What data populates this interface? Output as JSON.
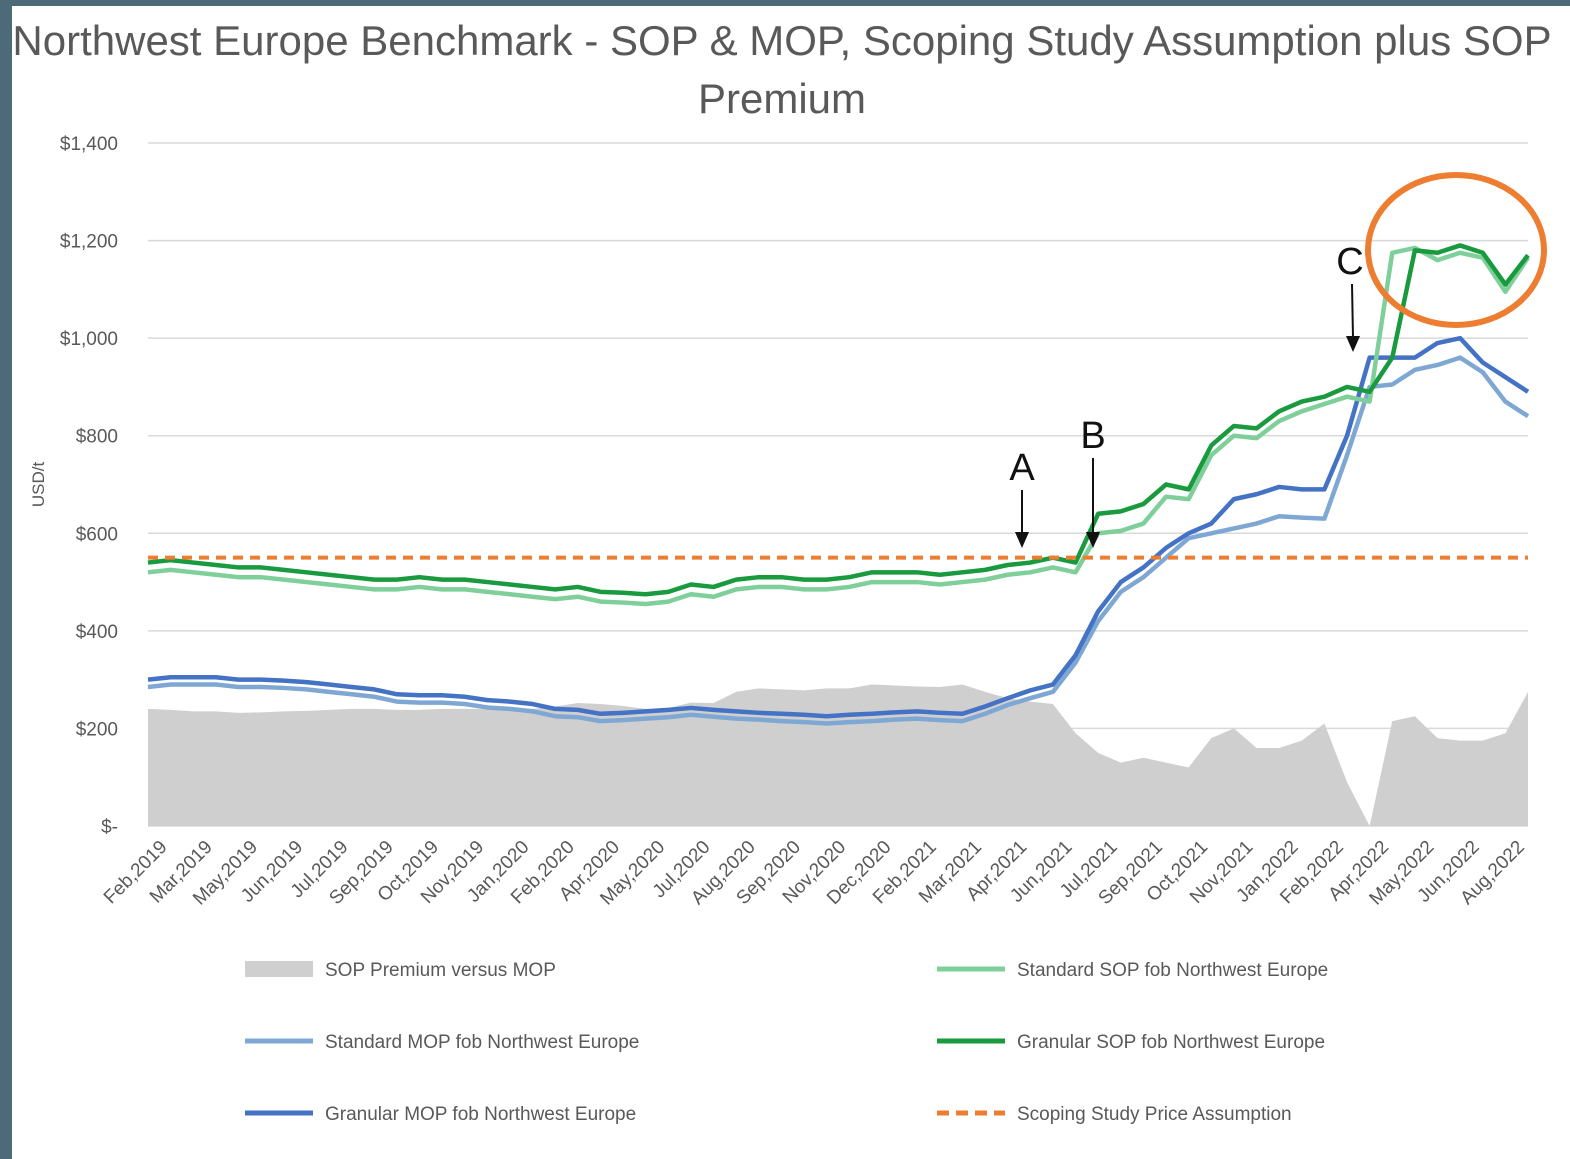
{
  "chart_data": {
    "type": "line",
    "title": "Northwest Europe Benchmark - SOP & MOP, Scoping Study Assumption plus SOP Premium",
    "y_label": "USD/t",
    "categories": [
      "Feb,2019",
      null,
      "Mar,2019",
      null,
      "May,2019",
      null,
      "Jun,2019",
      null,
      "Jul,2019",
      null,
      "Sep,2019",
      null,
      "Oct,2019",
      null,
      "Nov,2019",
      null,
      "Jan,2020",
      null,
      "Feb,2020",
      null,
      "Apr,2020",
      null,
      "May,2020",
      null,
      "Jul,2020",
      null,
      "Aug,2020",
      null,
      "Sep,2020",
      null,
      "Nov,2020",
      null,
      "Dec,2020",
      null,
      "Feb,2021",
      null,
      "Mar,2021",
      null,
      "Apr,2021",
      null,
      "Jun,2021",
      null,
      "Jul,2021",
      null,
      "Sep,2021",
      null,
      "Oct,2021",
      null,
      "Nov,2021",
      null,
      "Jan,2022",
      null,
      "Feb,2022",
      null,
      "Apr,2022",
      null,
      "May,2022",
      null,
      "Jun,2022",
      null,
      "Aug,2022",
      null
    ],
    "ylim": [
      0,
      1400
    ],
    "yticks": [
      {
        "value": 0,
        "label": "$-"
      },
      {
        "value": 200,
        "label": "$200"
      },
      {
        "value": 400,
        "label": "$400"
      },
      {
        "value": 600,
        "label": "$600"
      },
      {
        "value": 800,
        "label": "$800"
      },
      {
        "value": 1000,
        "label": "$1,000"
      },
      {
        "value": 1200,
        "label": "$1,200"
      },
      {
        "value": 1400,
        "label": "$1,400"
      }
    ],
    "grid": true,
    "series": [
      {
        "name": "SOP Premium versus MOP",
        "kind": "area",
        "color": "#d0cfcf",
        "values": [
          240,
          238,
          235,
          235,
          232,
          233,
          235,
          236,
          238,
          240,
          240,
          238,
          238,
          240,
          240,
          240,
          240,
          240,
          245,
          252,
          250,
          246,
          240,
          242,
          253,
          252,
          275,
          282,
          280,
          278,
          282,
          282,
          290,
          288,
          286,
          285,
          290,
          275,
          262,
          255,
          250,
          190,
          150,
          130,
          140,
          130,
          120,
          180,
          200,
          160,
          160,
          175,
          210,
          90,
          0,
          215,
          225,
          180,
          175,
          175,
          190,
          275
        ]
      },
      {
        "name": "Standard SOP fob Northwest Europe",
        "kind": "line",
        "color": "#7fcf9a",
        "values": [
          520,
          525,
          520,
          515,
          510,
          510,
          505,
          500,
          495,
          490,
          485,
          485,
          490,
          485,
          485,
          480,
          475,
          470,
          465,
          470,
          460,
          458,
          455,
          460,
          475,
          470,
          485,
          490,
          490,
          485,
          485,
          490,
          500,
          500,
          500,
          495,
          500,
          505,
          515,
          520,
          530,
          520,
          600,
          605,
          620,
          675,
          670,
          760,
          800,
          795,
          830,
          850,
          865,
          880,
          870,
          1175,
          1185,
          1160,
          1175,
          1165,
          1095,
          1165
        ]
      },
      {
        "name": "Standard MOP fob Northwest Europe",
        "kind": "line",
        "color": "#7fa7d4",
        "values": [
          285,
          290,
          290,
          290,
          285,
          285,
          283,
          280,
          275,
          270,
          265,
          255,
          253,
          253,
          250,
          243,
          240,
          235,
          225,
          223,
          215,
          217,
          220,
          223,
          228,
          224,
          220,
          218,
          215,
          213,
          210,
          213,
          215,
          218,
          220,
          217,
          215,
          230,
          248,
          262,
          275,
          335,
          420,
          480,
          510,
          550,
          590,
          600,
          610,
          620,
          635,
          632,
          630,
          760,
          900,
          905,
          935,
          945,
          960,
          930,
          870,
          840
        ]
      },
      {
        "name": "Granular SOP fob Northwest Europe",
        "kind": "line",
        "color": "#1a9a3e",
        "values": [
          540,
          545,
          540,
          535,
          530,
          530,
          525,
          520,
          515,
          510,
          505,
          505,
          510,
          505,
          505,
          500,
          495,
          490,
          485,
          490,
          480,
          478,
          475,
          480,
          495,
          490,
          505,
          510,
          510,
          505,
          505,
          510,
          520,
          520,
          520,
          515,
          520,
          525,
          535,
          540,
          550,
          540,
          640,
          645,
          660,
          700,
          690,
          780,
          820,
          815,
          850,
          870,
          880,
          900,
          890,
          960,
          1180,
          1175,
          1190,
          1175,
          1110,
          1170
        ]
      },
      {
        "name": "Granular MOP fob Northwest Europe",
        "kind": "line",
        "color": "#4472c4",
        "values": [
          300,
          305,
          305,
          305,
          300,
          300,
          298,
          295,
          290,
          285,
          280,
          270,
          268,
          268,
          265,
          258,
          255,
          250,
          240,
          238,
          230,
          232,
          235,
          238,
          242,
          238,
          235,
          232,
          230,
          228,
          225,
          228,
          230,
          233,
          235,
          232,
          230,
          245,
          262,
          278,
          290,
          350,
          440,
          500,
          530,
          570,
          600,
          620,
          670,
          680,
          695,
          690,
          690,
          800,
          960,
          960,
          960,
          990,
          1000,
          950,
          920,
          890
        ]
      },
      {
        "name": "Scoping Study Price Assumption",
        "kind": "hline",
        "color": "#ed7d31",
        "dashed": true,
        "value": 550
      }
    ],
    "annotations": [
      {
        "text": "A"
      },
      {
        "text": "B"
      },
      {
        "text": "C"
      }
    ]
  }
}
